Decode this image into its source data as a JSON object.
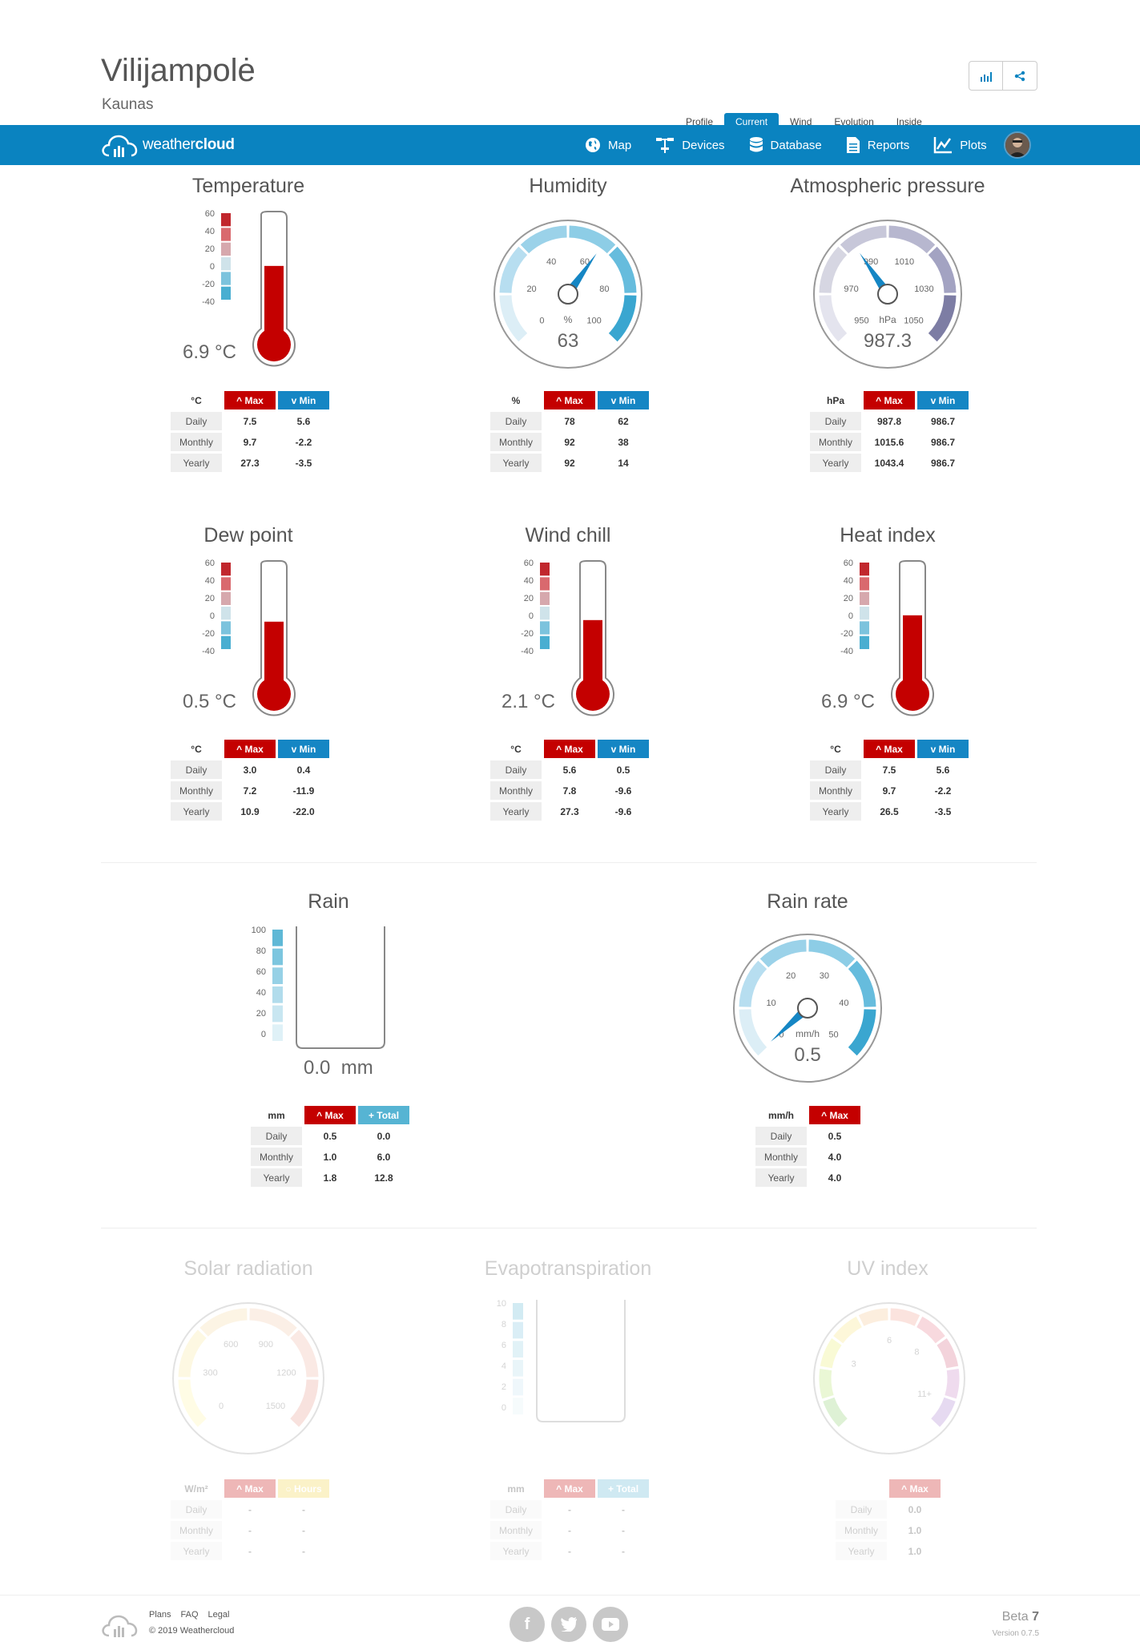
{
  "station": {
    "name": "Vilijampolė",
    "city": "Kaunas"
  },
  "subtabs": [
    "Profile",
    "Current",
    "Wind",
    "Evolution",
    "Inside"
  ],
  "nav": {
    "brand_light": "weather",
    "brand_bold": "cloud",
    "map": "Map",
    "devices": "Devices",
    "database": "Database",
    "reports": "Reports",
    "plots": "Plots"
  },
  "colors": {
    "navbar": "#0a83c0",
    "max": "#c40000",
    "min": "#1586c4",
    "total": "#56b4d3"
  },
  "table_labels": {
    "daily": "Daily",
    "monthly": "Monthly",
    "yearly": "Yearly",
    "max": "Max",
    "min": "Min",
    "total": "Total",
    "hours": "Hours"
  },
  "therm_ticks": [
    "60",
    "40",
    "20",
    "0",
    "-20",
    "-40"
  ],
  "temperature": {
    "title": "Temperature",
    "value": "6.9 °C",
    "reading": 6.9,
    "unit": "°C",
    "daily": [
      "7.5",
      "5.6"
    ],
    "monthly": [
      "9.7",
      "-2.2"
    ],
    "yearly": [
      "27.3",
      "-3.5"
    ]
  },
  "dewpoint": {
    "title": "Dew point",
    "value": "0.5 °C",
    "reading": 0.5,
    "unit": "°C",
    "daily": [
      "3.0",
      "0.4"
    ],
    "monthly": [
      "7.2",
      "-11.9"
    ],
    "yearly": [
      "10.9",
      "-22.0"
    ]
  },
  "windchill": {
    "title": "Wind chill",
    "value": "2.1 °C",
    "reading": 2.1,
    "unit": "°C",
    "daily": [
      "5.6",
      "0.5"
    ],
    "monthly": [
      "7.8",
      "-9.6"
    ],
    "yearly": [
      "27.3",
      "-9.6"
    ]
  },
  "heatindex": {
    "title": "Heat index",
    "value": "6.9 °C",
    "reading": 6.9,
    "unit": "°C",
    "daily": [
      "7.5",
      "5.6"
    ],
    "monthly": [
      "9.7",
      "-2.2"
    ],
    "yearly": [
      "26.5",
      "-3.5"
    ]
  },
  "humidity": {
    "title": "Humidity",
    "value": "63",
    "gauge_unit": "%",
    "unit": "%",
    "ticks": [
      "0",
      "20",
      "40",
      "60",
      "80",
      "100"
    ],
    "reading": 63,
    "daily": [
      "78",
      "62"
    ],
    "monthly": [
      "92",
      "38"
    ],
    "yearly": [
      "92",
      "14"
    ]
  },
  "pressure": {
    "title": "Atmospheric pressure",
    "value": "987.3",
    "gauge_unit": "hPa",
    "unit": "hPa",
    "ticks": [
      "950",
      "970",
      "990",
      "1010",
      "1030",
      "1050"
    ],
    "reading": 987.3,
    "daily": [
      "987.8",
      "986.7"
    ],
    "monthly": [
      "1015.6",
      "986.7"
    ],
    "yearly": [
      "1043.4",
      "986.7"
    ]
  },
  "rain": {
    "title": "Rain",
    "value": "0.0  mm",
    "reading": 0.0,
    "unit": "mm",
    "ticks": [
      "100",
      "80",
      "60",
      "40",
      "20",
      "0"
    ],
    "daily": [
      "0.5",
      "0.0"
    ],
    "monthly": [
      "1.0",
      "6.0"
    ],
    "yearly": [
      "1.8",
      "12.8"
    ]
  },
  "rainrate": {
    "title": "Rain rate",
    "value": "0.5",
    "gauge_unit": "mm/h",
    "unit": "mm/h",
    "ticks": [
      "0",
      "10",
      "20",
      "30",
      "40",
      "50"
    ],
    "reading": 0.5,
    "daily": [
      "0.5"
    ],
    "monthly": [
      "4.0"
    ],
    "yearly": [
      "4.0"
    ]
  },
  "solar": {
    "title": "Solar radiation",
    "unit": "W/m²",
    "ticks": [
      "0",
      "300",
      "600",
      "900",
      "1200",
      "1500"
    ],
    "daily": [
      "-",
      "-"
    ],
    "monthly": [
      "-",
      "-"
    ],
    "yearly": [
      "-",
      "-"
    ]
  },
  "evapo": {
    "title": "Evapotranspiration",
    "unit": "mm",
    "ticks": [
      "10",
      "8",
      "6",
      "4",
      "2",
      "0"
    ],
    "daily": [
      "-",
      "-"
    ],
    "monthly": [
      "-",
      "-"
    ],
    "yearly": [
      "-",
      "-"
    ]
  },
  "uv": {
    "title": "UV index",
    "ticks": [
      "3",
      "6",
      "8",
      "11+"
    ],
    "daily": [
      "0.0"
    ],
    "monthly": [
      "1.0"
    ],
    "yearly": [
      "1.0"
    ]
  },
  "footer": {
    "plans": "Plans",
    "faq": "FAQ",
    "legal": "Legal",
    "copyright": "© 2019 Weathercloud",
    "beta_label": "Beta",
    "beta_num": "7",
    "version": "Version 0.7.5"
  }
}
